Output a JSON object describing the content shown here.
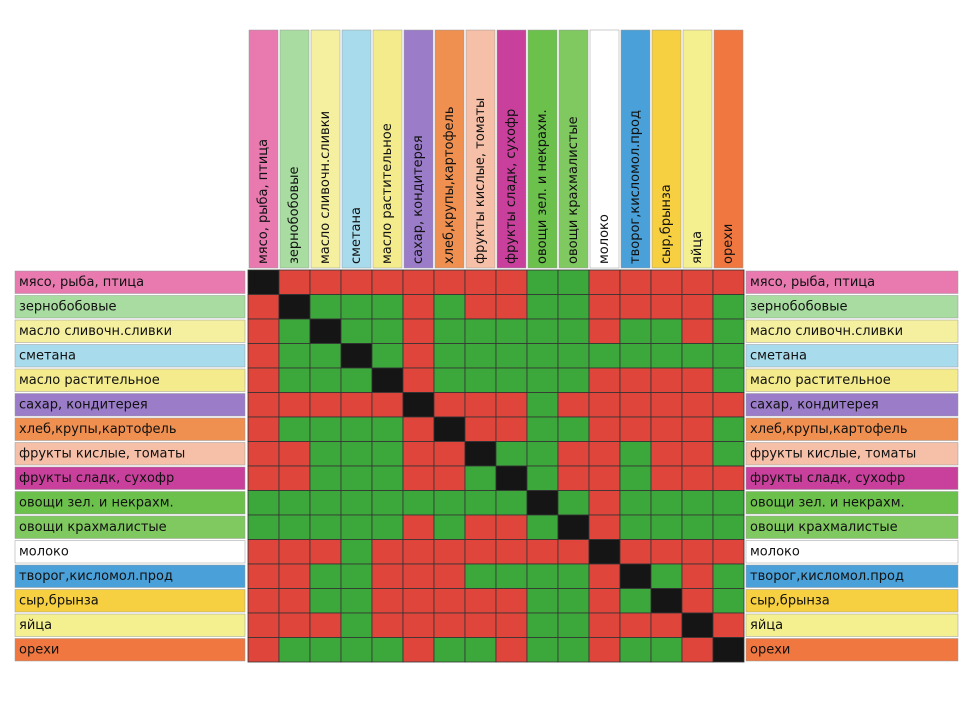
{
  "items": [
    {
      "label": "мясо, рыба, птица",
      "color": "#e87ab0"
    },
    {
      "label": "зернобобовые",
      "color": "#a8dca0"
    },
    {
      "label": "масло сливочн.сливки",
      "color": "#f4f0a0"
    },
    {
      "label": "сметана",
      "color": "#a8dcec"
    },
    {
      "label": "масло растительное",
      "color": "#f4ec8c"
    },
    {
      "label": "сахар, кондитерея",
      "color": "#9a7cc8"
    },
    {
      "label": "хлеб,крупы,картофель",
      "color": "#f09050"
    },
    {
      "label": "фрукты кислые, томаты",
      "color": "#f6c0a8"
    },
    {
      "label": "фрукты сладк, сухофр",
      "color": "#c8409c"
    },
    {
      "label": "овощи зел. и некрахм.",
      "color": "#6cc04c"
    },
    {
      "label": "овощи крахмалистые",
      "color": "#80c860"
    },
    {
      "label": "молоко",
      "color": "#ffffff"
    },
    {
      "label": "творог,кисломол.прод",
      "color": "#4aa0d8"
    },
    {
      "label": "сыр,брынза",
      "color": "#f6d040"
    },
    {
      "label": "яйца",
      "color": "#f4f090"
    },
    {
      "label": "орехи",
      "color": "#f07840"
    }
  ],
  "colors": {
    "R": "#e0453c",
    "G": "#3ca83c",
    "B": "#151515"
  },
  "matrix": [
    [
      "B",
      "R",
      "R",
      "R",
      "R",
      "R",
      "R",
      "R",
      "R",
      "G",
      "G",
      "R",
      "R",
      "R",
      "R",
      "R"
    ],
    [
      "R",
      "B",
      "G",
      "G",
      "G",
      "R",
      "G",
      "R",
      "R",
      "G",
      "G",
      "R",
      "R",
      "R",
      "R",
      "G"
    ],
    [
      "R",
      "G",
      "B",
      "G",
      "G",
      "R",
      "G",
      "G",
      "G",
      "G",
      "G",
      "R",
      "G",
      "G",
      "R",
      "G"
    ],
    [
      "R",
      "G",
      "G",
      "B",
      "G",
      "R",
      "G",
      "G",
      "G",
      "G",
      "G",
      "G",
      "G",
      "G",
      "G",
      "G"
    ],
    [
      "R",
      "G",
      "G",
      "G",
      "B",
      "R",
      "G",
      "G",
      "G",
      "G",
      "G",
      "R",
      "R",
      "R",
      "R",
      "G"
    ],
    [
      "R",
      "R",
      "R",
      "R",
      "R",
      "B",
      "R",
      "R",
      "R",
      "G",
      "R",
      "R",
      "R",
      "R",
      "R",
      "R"
    ],
    [
      "R",
      "G",
      "G",
      "G",
      "G",
      "R",
      "B",
      "R",
      "R",
      "G",
      "G",
      "R",
      "R",
      "R",
      "R",
      "G"
    ],
    [
      "R",
      "R",
      "G",
      "G",
      "G",
      "R",
      "R",
      "B",
      "G",
      "G",
      "R",
      "R",
      "G",
      "R",
      "R",
      "G"
    ],
    [
      "R",
      "R",
      "G",
      "G",
      "G",
      "R",
      "R",
      "G",
      "B",
      "G",
      "R",
      "R",
      "G",
      "R",
      "R",
      "R"
    ],
    [
      "G",
      "G",
      "G",
      "G",
      "G",
      "G",
      "G",
      "G",
      "G",
      "B",
      "G",
      "R",
      "G",
      "G",
      "G",
      "G"
    ],
    [
      "G",
      "G",
      "G",
      "G",
      "G",
      "R",
      "G",
      "R",
      "R",
      "G",
      "B",
      "R",
      "G",
      "G",
      "G",
      "G"
    ],
    [
      "R",
      "R",
      "R",
      "G",
      "R",
      "R",
      "R",
      "R",
      "R",
      "R",
      "R",
      "B",
      "R",
      "R",
      "R",
      "R"
    ],
    [
      "R",
      "R",
      "G",
      "G",
      "R",
      "R",
      "R",
      "G",
      "G",
      "G",
      "G",
      "R",
      "B",
      "G",
      "R",
      "G"
    ],
    [
      "R",
      "R",
      "G",
      "G",
      "R",
      "R",
      "R",
      "R",
      "R",
      "G",
      "G",
      "R",
      "G",
      "B",
      "R",
      "G"
    ],
    [
      "R",
      "R",
      "R",
      "G",
      "R",
      "R",
      "R",
      "R",
      "R",
      "G",
      "G",
      "R",
      "R",
      "R",
      "B",
      "R"
    ],
    [
      "R",
      "G",
      "G",
      "G",
      "G",
      "R",
      "G",
      "G",
      "R",
      "G",
      "G",
      "R",
      "G",
      "G",
      "R",
      "B"
    ]
  ]
}
